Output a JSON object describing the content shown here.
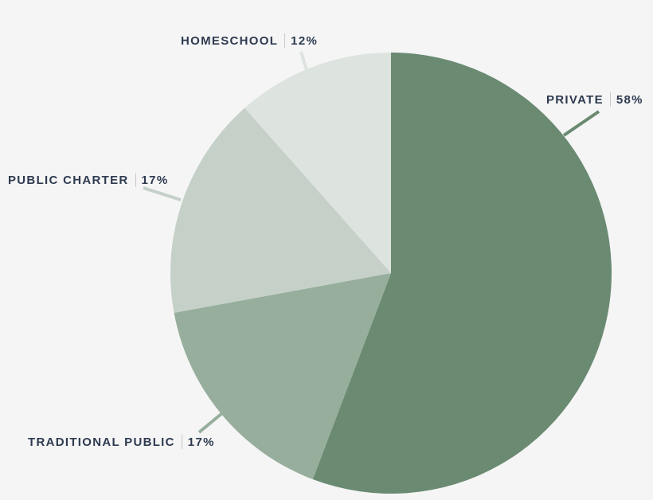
{
  "chart_data": {
    "type": "pie",
    "title": "",
    "categories": [
      "Private",
      "Traditional Public",
      "Public Charter",
      "Homeschool"
    ],
    "values": [
      58,
      17,
      17,
      12
    ],
    "unit": "%",
    "start_angle": "12 o'clock, clockwise",
    "colors": [
      "#6a8a72",
      "#96ae9b",
      "#c5d0c8",
      "#dde3df"
    ],
    "labels": [
      {
        "name": "PRIVATE",
        "value": "58%"
      },
      {
        "name": "TRADITIONAL PUBLIC",
        "value": "17%"
      },
      {
        "name": "PUBLIC CHARTER",
        "value": "17%"
      },
      {
        "name": "HOMESCHOOL",
        "value": "12%"
      }
    ],
    "legend": "none (direct labels with leader lines)"
  },
  "style": {
    "background": "#f5f5f5",
    "label_color": "#2e3a50"
  }
}
